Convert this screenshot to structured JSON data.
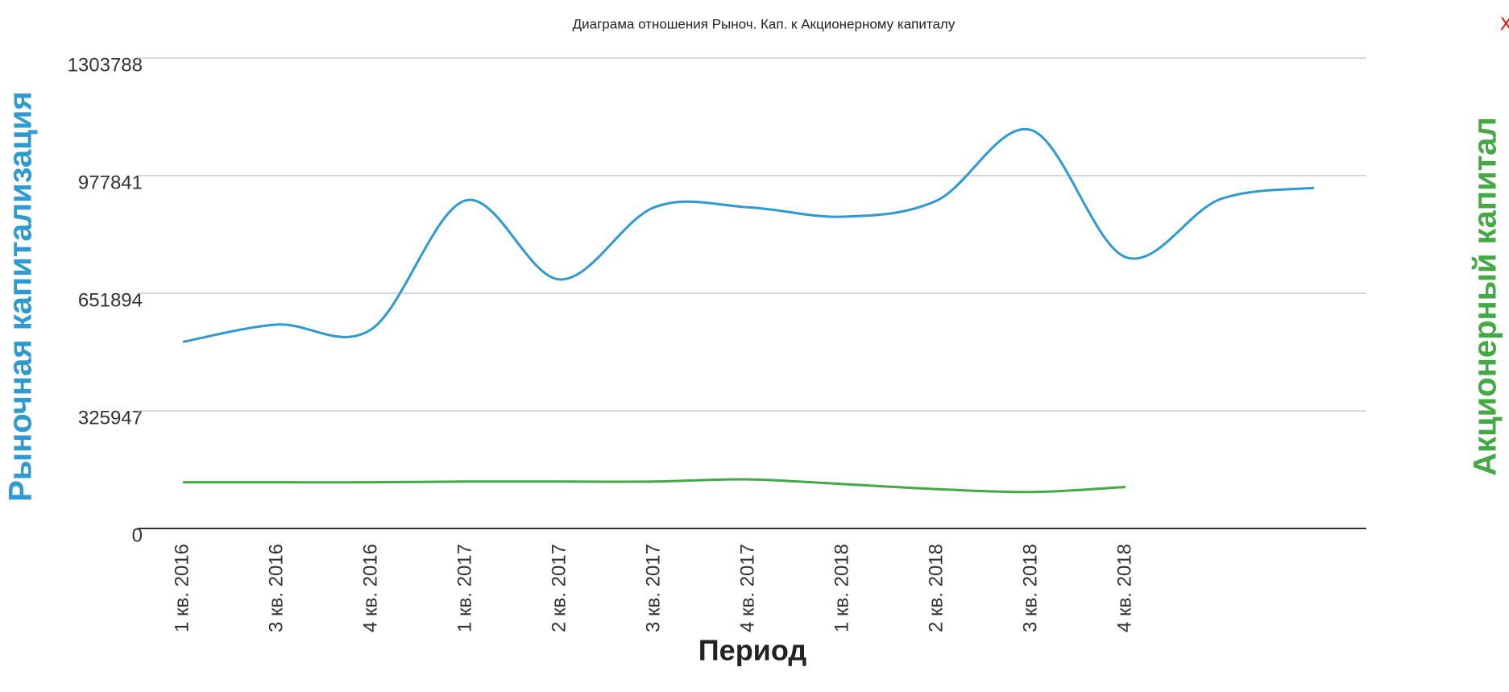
{
  "chart_data": {
    "type": "line",
    "title": "Диаграма отношения Рыноч. Кап. к Акционерному капиталу",
    "close_button": "X",
    "x_label": "Период",
    "y_label": "Рыночная капитализация",
    "y2_label": "Акционерный капитал",
    "categories": [
      "1 кв. 2016",
      "3 кв. 2016",
      "4 кв. 2016",
      "1 кв. 2017",
      "2 кв. 2017",
      "3 кв. 2017",
      "4 кв. 2017",
      "1 кв. 2018",
      "2 кв. 2018",
      "3 кв. 2018",
      "4 кв. 2018",
      null,
      null
    ],
    "series": [
      {
        "name": "Рыночная капитализация",
        "color": "#2e9ad0",
        "values": [
          517000,
          565000,
          552000,
          909000,
          690000,
          890000,
          890000,
          864000,
          909000,
          1104000,
          752000,
          912000,
          944000
        ]
      },
      {
        "name": "Акционерный капитал",
        "color": "#44a844",
        "values": [
          128000,
          128000,
          128000,
          130000,
          130000,
          130000,
          136000,
          123000,
          109000,
          101000,
          115000,
          null,
          null
        ]
      }
    ],
    "ylim": [
      0,
      1303788
    ],
    "yticks": [
      0,
      325947,
      651894,
      977841,
      1303788
    ],
    "grid": true
  }
}
